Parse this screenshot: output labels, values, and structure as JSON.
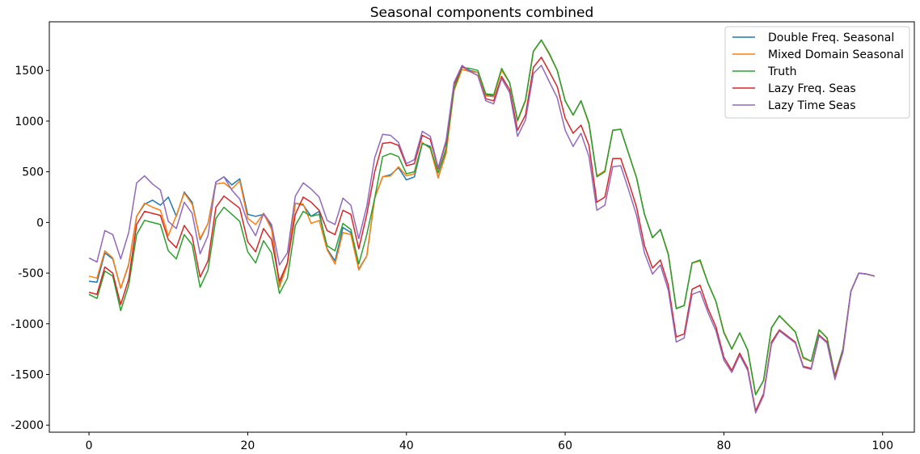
{
  "chart_data": {
    "type": "line",
    "title": "Seasonal components combined",
    "xlabel": "",
    "ylabel": "",
    "xlim": [
      -5,
      104
    ],
    "ylim": [
      -2070,
      1980
    ],
    "xticks": [
      0,
      20,
      40,
      60,
      80,
      100
    ],
    "yticks": [
      -2000,
      -1500,
      -1000,
      -500,
      0,
      500,
      1000,
      1500
    ],
    "grid": false,
    "legend_position": "top-right",
    "x": [
      0,
      1,
      2,
      3,
      4,
      5,
      6,
      7,
      8,
      9,
      10,
      11,
      12,
      13,
      14,
      15,
      16,
      17,
      18,
      19,
      20,
      21,
      22,
      23,
      24,
      25,
      26,
      27,
      28,
      29,
      30,
      31,
      32,
      33,
      34,
      35,
      36,
      37,
      38,
      39,
      40,
      41,
      42,
      43,
      44,
      45,
      46,
      47,
      48,
      49,
      50,
      51,
      52,
      53,
      54,
      55,
      56,
      57,
      58,
      59,
      60,
      61,
      62,
      63,
      64,
      65,
      66,
      67,
      68,
      69,
      70,
      71,
      72,
      73,
      74,
      75,
      76,
      77,
      78,
      79,
      80,
      81,
      82,
      83,
      84,
      85,
      86,
      87,
      88,
      89,
      90,
      91,
      92,
      93,
      94,
      95,
      96,
      97,
      98,
      99
    ],
    "series": [
      {
        "name": "Double Freq. Seasonal",
        "color": "#1f77b4",
        "values": [
          -580,
          -590,
          -300,
          -360,
          -650,
          -420,
          60,
          180,
          220,
          170,
          250,
          60,
          300,
          200,
          -170,
          -10,
          400,
          450,
          370,
          430,
          80,
          60,
          80,
          -40,
          -620,
          -400,
          190,
          170,
          60,
          110,
          -260,
          -380,
          -50,
          -100,
          -460,
          -330,
          240,
          450,
          470,
          540,
          420,
          450,
          780,
          750,
          440,
          700,
          1310,
          1540,
          1500,
          1480,
          1260,
          1250,
          1510,
          1380,
          1000,
          1200,
          1690,
          1800,
          1660,
          1500,
          1200,
          1060,
          1200,
          980,
          460,
          510,
          910,
          920,
          680,
          440,
          80,
          -150,
          -70,
          -310,
          -850,
          -820,
          -400,
          -380,
          -600,
          -780,
          -1080,
          -1250,
          -1090,
          -1260,
          -1700,
          -1560,
          -1040,
          -920,
          -1000,
          -1080,
          -1340,
          -1370,
          -1060,
          -1140,
          -1510,
          -1250,
          -680,
          -500,
          -510,
          -530
        ]
      },
      {
        "name": "Mixed Domain Seasonal",
        "color": "#ff7f0e",
        "values": [
          -530,
          -550,
          -280,
          -350,
          -650,
          -410,
          60,
          190,
          150,
          120,
          -130,
          70,
          290,
          180,
          -160,
          -10,
          380,
          390,
          330,
          410,
          40,
          -20,
          90,
          -70,
          -640,
          -410,
          190,
          180,
          -10,
          20,
          -270,
          -410,
          -100,
          -120,
          -470,
          -330,
          240,
          450,
          460,
          550,
          460,
          480,
          790,
          730,
          440,
          680,
          1300,
          1510,
          1490,
          1480,
          1250,
          1240,
          1500,
          1380,
          1000,
          1200,
          1690,
          1800,
          1660,
          1500,
          1200,
          1060,
          1200,
          970,
          460,
          510,
          910,
          920,
          680,
          440,
          80,
          -150,
          -70,
          -310,
          -850,
          -820,
          -400,
          -380,
          -600,
          -780,
          -1080,
          -1250,
          -1090,
          -1260,
          -1700,
          -1560,
          -1040,
          -920,
          -1000,
          -1080,
          -1340,
          -1370,
          -1060,
          -1140,
          -1510,
          -1250,
          -680,
          -500,
          -510,
          -530
        ]
      },
      {
        "name": "Truth",
        "color": "#2ca02c",
        "values": [
          -710,
          -750,
          -480,
          -530,
          -870,
          -620,
          -120,
          20,
          0,
          -20,
          -280,
          -360,
          -120,
          -220,
          -640,
          -470,
          40,
          150,
          80,
          10,
          -290,
          -400,
          -180,
          -300,
          -700,
          -550,
          -30,
          110,
          60,
          80,
          -230,
          -280,
          -10,
          -70,
          -410,
          -120,
          240,
          650,
          680,
          650,
          480,
          500,
          780,
          740,
          490,
          730,
          1320,
          1530,
          1520,
          1500,
          1270,
          1260,
          1520,
          1380,
          1010,
          1210,
          1690,
          1800,
          1670,
          1500,
          1200,
          1060,
          1200,
          980,
          450,
          500,
          910,
          920,
          680,
          440,
          80,
          -150,
          -70,
          -320,
          -850,
          -820,
          -400,
          -370,
          -600,
          -780,
          -1090,
          -1250,
          -1090,
          -1260,
          -1700,
          -1560,
          -1040,
          -920,
          -1000,
          -1080,
          -1330,
          -1370,
          -1060,
          -1140,
          -1520,
          -1250,
          -680,
          -500,
          -510,
          -530
        ]
      },
      {
        "name": "Lazy Freq. Seas",
        "color": "#d62728",
        "values": [
          -690,
          -710,
          -440,
          -500,
          -810,
          -560,
          -20,
          110,
          90,
          70,
          -170,
          -250,
          -30,
          -140,
          -540,
          -380,
          150,
          260,
          200,
          140,
          -190,
          -290,
          -60,
          -170,
          -580,
          -400,
          80,
          250,
          200,
          120,
          -80,
          -120,
          120,
          80,
          -260,
          80,
          500,
          780,
          790,
          760,
          560,
          580,
          860,
          820,
          530,
          790,
          1360,
          1540,
          1490,
          1450,
          1220,
          1200,
          1440,
          1310,
          910,
          1060,
          1530,
          1630,
          1490,
          1340,
          1030,
          880,
          960,
          760,
          200,
          250,
          630,
          630,
          400,
          150,
          -230,
          -450,
          -370,
          -620,
          -1130,
          -1100,
          -660,
          -620,
          -850,
          -1030,
          -1330,
          -1460,
          -1290,
          -1440,
          -1860,
          -1690,
          -1180,
          -1060,
          -1120,
          -1180,
          -1420,
          -1440,
          -1110,
          -1180,
          -1530,
          -1270,
          -680,
          -500,
          -510,
          -530
        ]
      },
      {
        "name": "Lazy Time Seas",
        "color": "#9467bd",
        "values": [
          -350,
          -390,
          -80,
          -120,
          -360,
          -100,
          390,
          460,
          380,
          320,
          10,
          -60,
          200,
          90,
          -310,
          -130,
          400,
          450,
          320,
          230,
          0,
          -130,
          90,
          -20,
          -420,
          -300,
          260,
          390,
          330,
          250,
          20,
          -20,
          240,
          170,
          -160,
          160,
          640,
          870,
          860,
          790,
          580,
          620,
          900,
          850,
          540,
          810,
          1380,
          1550,
          1490,
          1450,
          1200,
          1170,
          1420,
          1280,
          850,
          1010,
          1470,
          1550,
          1390,
          1230,
          910,
          750,
          880,
          650,
          120,
          170,
          550,
          560,
          320,
          70,
          -300,
          -510,
          -420,
          -670,
          -1180,
          -1140,
          -710,
          -680,
          -890,
          -1070,
          -1360,
          -1480,
          -1310,
          -1460,
          -1880,
          -1710,
          -1200,
          -1070,
          -1130,
          -1190,
          -1430,
          -1450,
          -1120,
          -1190,
          -1550,
          -1280,
          -680,
          -500,
          -510,
          -530
        ]
      }
    ]
  }
}
